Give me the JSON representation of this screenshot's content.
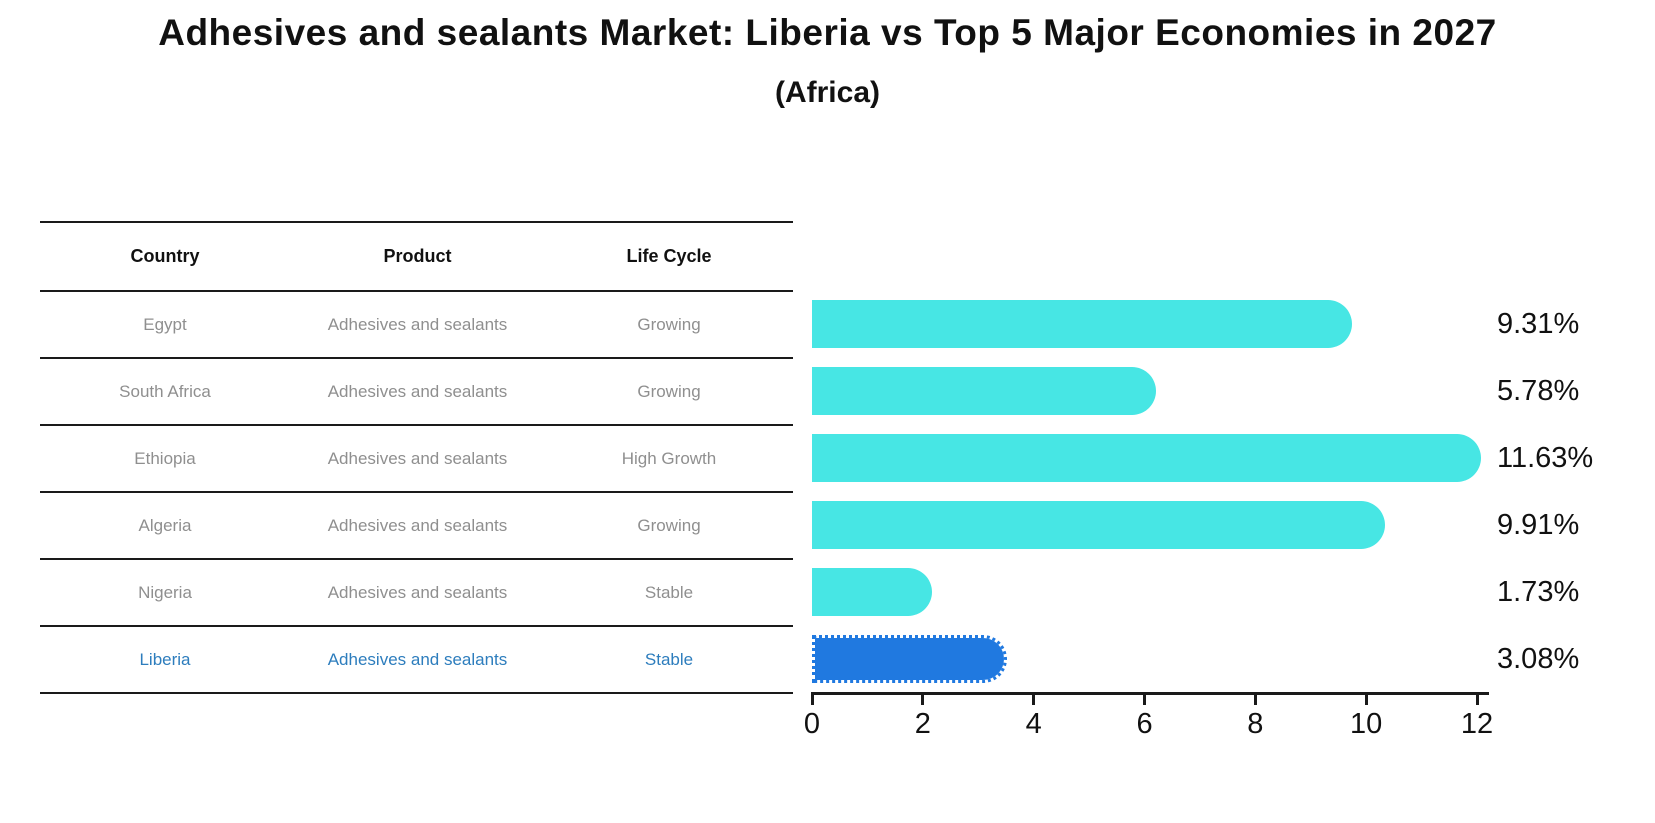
{
  "header": {
    "title": "Adhesives and sealants Market: Liberia vs Top 5 Major Economies in 2027",
    "subtitle": "(Africa)"
  },
  "table": {
    "columns": [
      "Country",
      "Product",
      "Life Cycle"
    ],
    "rows": [
      {
        "country": "Egypt",
        "product": "Adhesives and sealants",
        "life_cycle": "Growing",
        "highlight": false
      },
      {
        "country": "South Africa",
        "product": "Adhesives and sealants",
        "life_cycle": "Growing",
        "highlight": false
      },
      {
        "country": "Ethiopia",
        "product": "Adhesives and sealants",
        "life_cycle": "High Growth",
        "highlight": false
      },
      {
        "country": "Algeria",
        "product": "Adhesives and sealants",
        "life_cycle": "Growing",
        "highlight": false
      },
      {
        "country": "Nigeria",
        "product": "Adhesives and sealants",
        "life_cycle": "Stable",
        "highlight": false
      },
      {
        "country": "Liberia",
        "product": "Adhesives and sealants",
        "life_cycle": "Stable",
        "highlight": true
      }
    ]
  },
  "chart_data": {
    "type": "bar",
    "orientation": "horizontal",
    "title": "Adhesives and sealants Market: Liberia vs Top 5 Major Economies in 2027",
    "subtitle": "(Africa)",
    "categories": [
      "Egypt",
      "South Africa",
      "Ethiopia",
      "Algeria",
      "Nigeria",
      "Liberia"
    ],
    "values": [
      9.31,
      5.78,
      11.63,
      9.91,
      1.73,
      3.08
    ],
    "value_labels": [
      "9.31%",
      "5.78%",
      "11.63%",
      "9.91%",
      "1.73%",
      "3.08%"
    ],
    "x_ticks": [
      0,
      2,
      4,
      6,
      8,
      10,
      12
    ],
    "xlim": [
      0,
      12
    ],
    "grid": false,
    "legend": "none",
    "highlight_category": "Liberia",
    "bar_color": "#47E6E4",
    "highlight_bar_color": "#2079E0"
  },
  "colors": {
    "title_text": "#111111",
    "header_text": "#111111",
    "row_text": "#8f8f8f",
    "highlight_row_text": "#2d7dbd",
    "table_line": "#1a1a1a",
    "bar": "#47E6E4",
    "highlight_bar": "#2079E0",
    "axis": "#1a1a1a",
    "value_label_text": "#111111"
  }
}
